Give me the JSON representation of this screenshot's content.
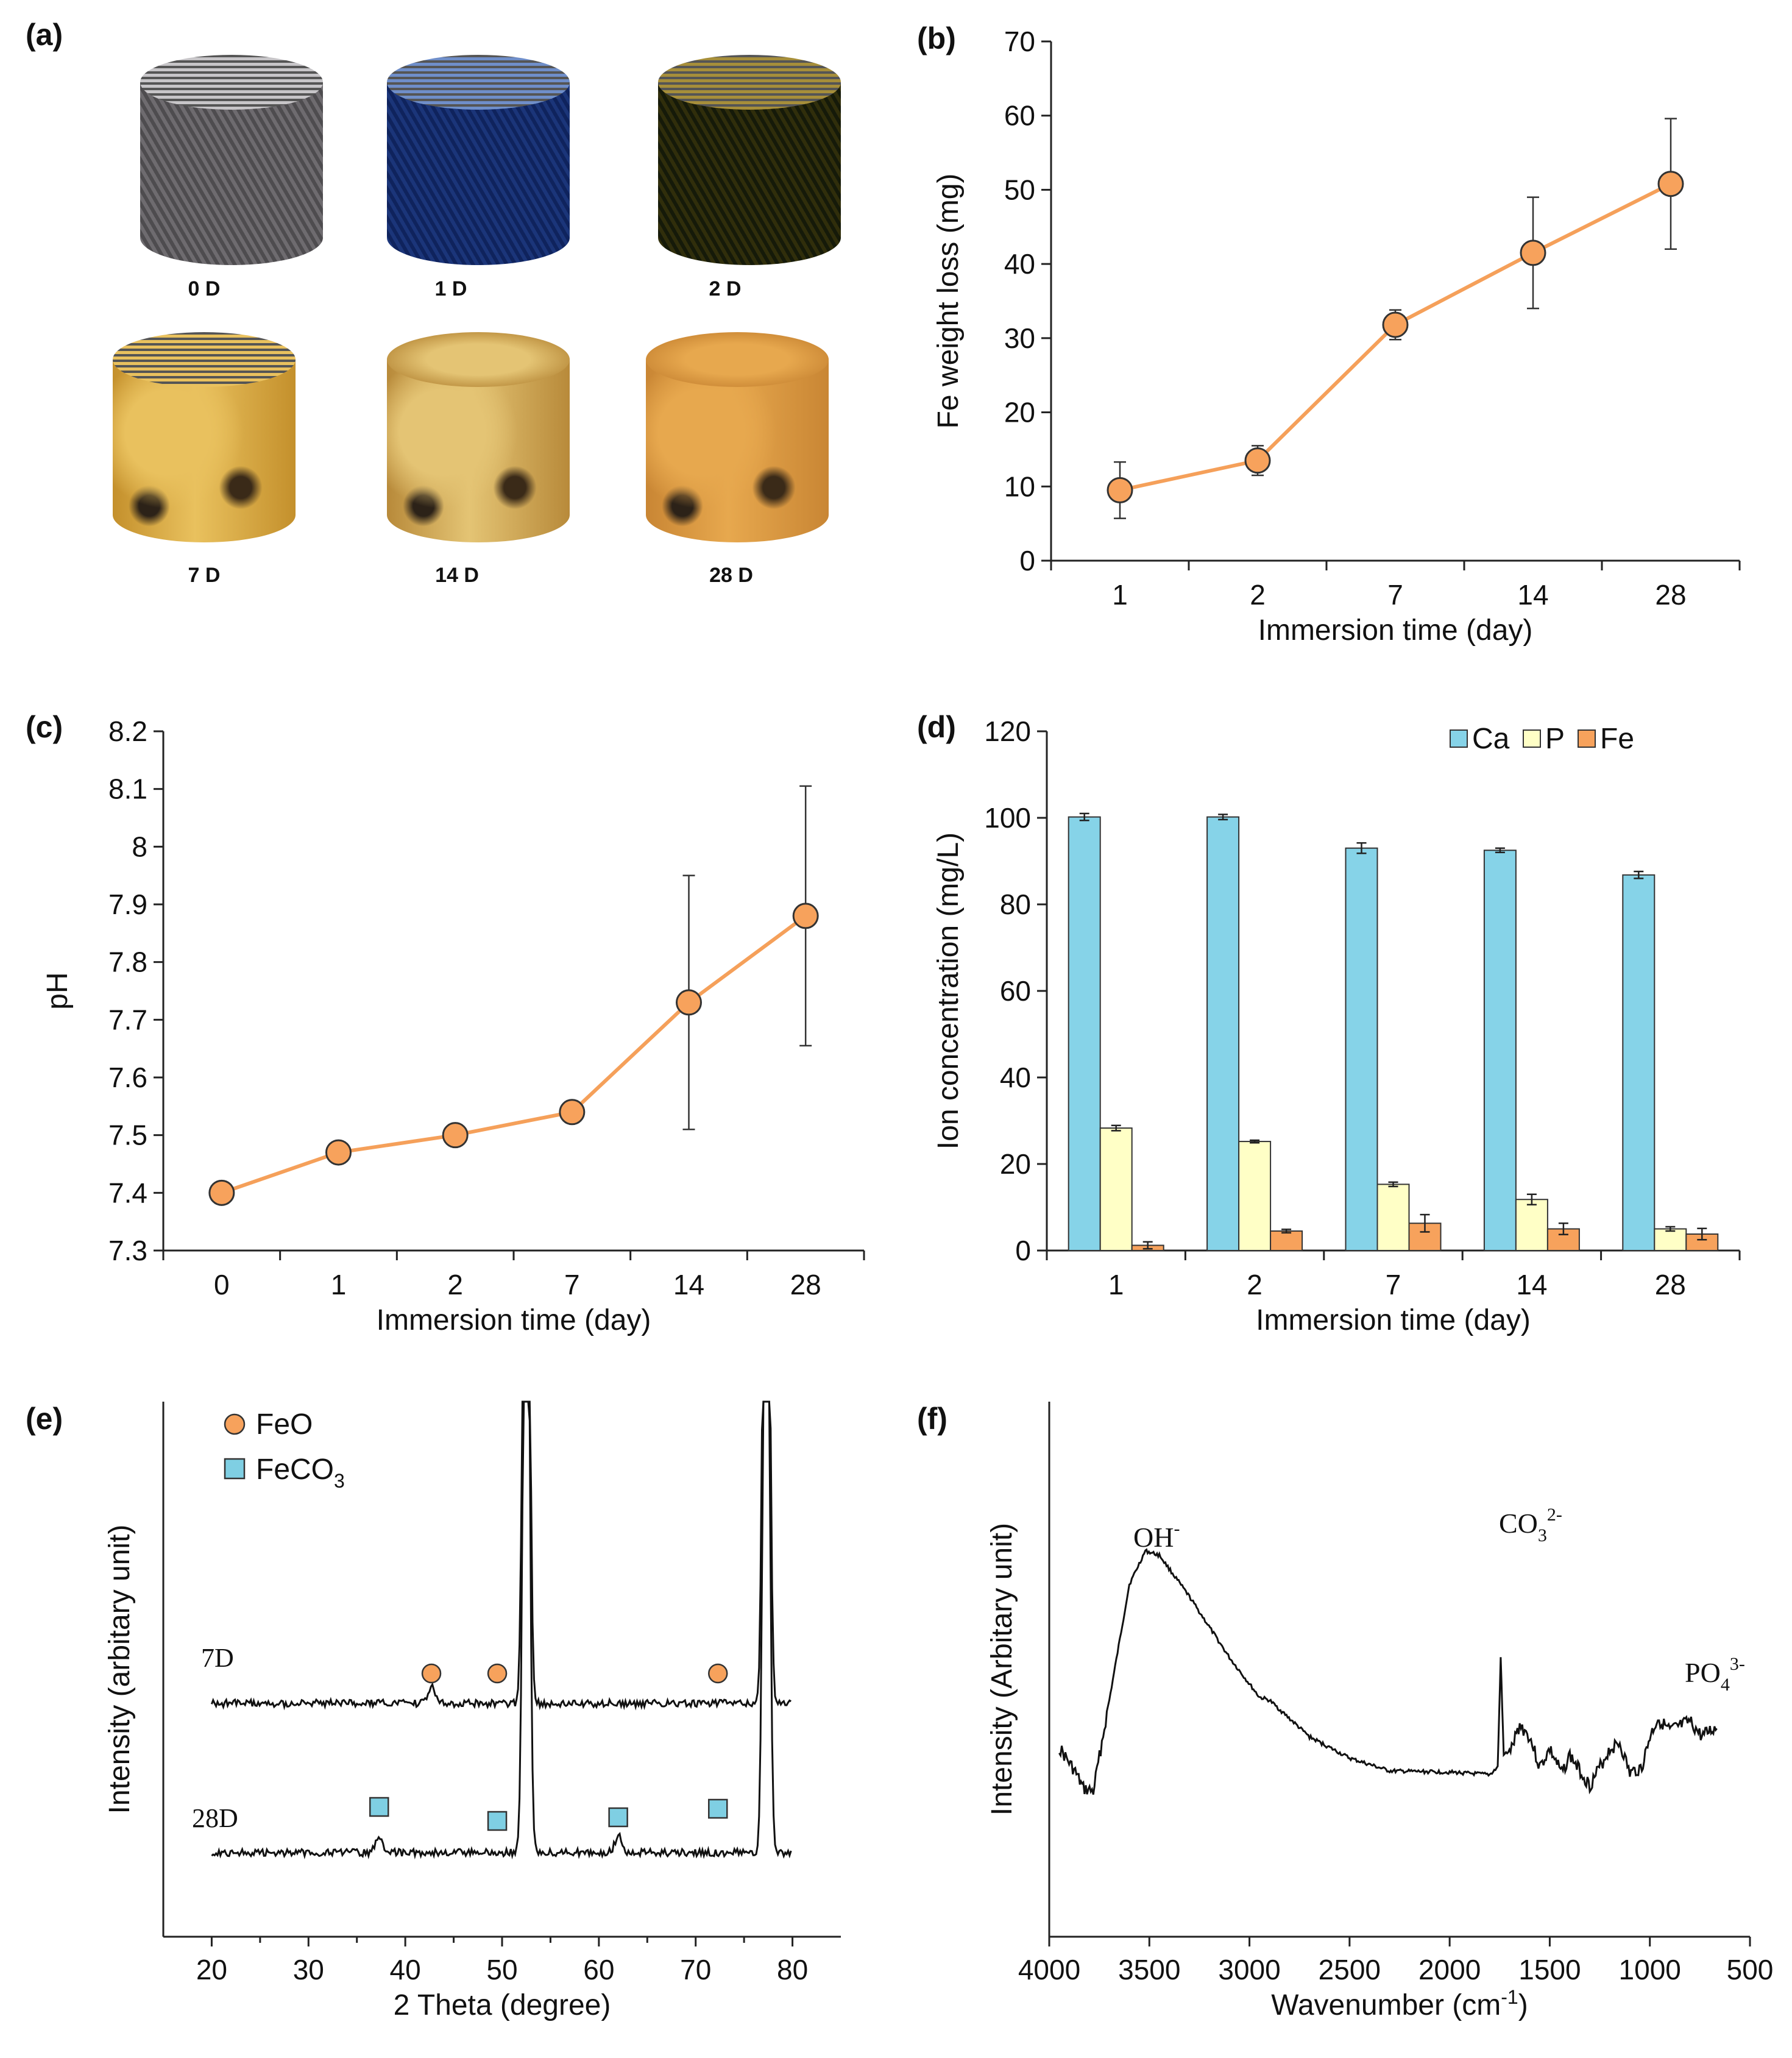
{
  "panels": {
    "a": {
      "label": "(a)",
      "samples": [
        {
          "name": "0 D",
          "color": "#8d8b8e",
          "color2": "#c7c5c8",
          "style": "mesh"
        },
        {
          "name": "1 D",
          "color": "#3d5f9a",
          "color2": "#6f8ec9",
          "style": "mesh"
        },
        {
          "name": "2 D",
          "color": "#4a5230",
          "color2": "#a68e3a",
          "style": "mesh"
        },
        {
          "name": "7 D",
          "color": "#c4902c",
          "color2": "#e9c15e",
          "style": "rust"
        },
        {
          "name": "14 D",
          "color": "#b88a3a",
          "color2": "#e4c474",
          "style": "rust"
        },
        {
          "name": "28 D",
          "color": "#c98634",
          "color2": "#e7a84e",
          "style": "rust"
        }
      ]
    },
    "e": {
      "legend": [
        {
          "symbol": "circle",
          "label": "FeO",
          "color": "#f7a25c"
        },
        {
          "symbol": "square",
          "label": "FeCO",
          "sub": "3",
          "color": "#7fcfe3"
        }
      ],
      "traces": [
        {
          "name": "7D"
        },
        {
          "name": "28D"
        }
      ]
    },
    "f": {
      "annotations": [
        {
          "base": "OH",
          "sup": "-"
        },
        {
          "base": "CO",
          "sub": "3",
          "sup": "2-"
        },
        {
          "base": "PO",
          "sub": "4",
          "sup": "3-"
        }
      ]
    }
  },
  "chart_data": [
    {
      "id": "b",
      "panel_label": "(b)",
      "type": "line",
      "categories": [
        "1",
        "2",
        "7",
        "14",
        "28"
      ],
      "values": [
        9.5,
        13.5,
        31.8,
        41.5,
        50.8
      ],
      "errors": [
        3.8,
        2.0,
        2.0,
        7.5,
        8.8
      ],
      "ylabel": "Fe weight loss (mg)",
      "xlabel": "Immersion time (day)",
      "ylim": [
        0,
        70
      ],
      "yticks": [
        "0",
        "10",
        "20",
        "30",
        "40",
        "50",
        "60",
        "70"
      ],
      "color": "#f7a25c",
      "line_color": "#f5a05a"
    },
    {
      "id": "c",
      "panel_label": "(c)",
      "type": "line",
      "categories": [
        "0",
        "1",
        "2",
        "7",
        "14",
        "28"
      ],
      "values": [
        7.4,
        7.47,
        7.5,
        7.54,
        7.73,
        7.88
      ],
      "errors": [
        0,
        0,
        0,
        0,
        0.22,
        0.225
      ],
      "ylabel": "pH",
      "xlabel": "Immersion time (day)",
      "ylim": [
        7.3,
        8.2
      ],
      "yticks": [
        "7.3",
        "7.4",
        "7.5",
        "7.6",
        "7.7",
        "7.8",
        "7.9",
        "8",
        "8.1",
        "8.2"
      ],
      "color": "#f7a25c",
      "line_color": "#f5a05a"
    },
    {
      "id": "d",
      "panel_label": "(d)",
      "type": "bar",
      "categories": [
        "1",
        "2",
        "7",
        "14",
        "28"
      ],
      "series": [
        {
          "name": "Ca",
          "values": [
            100.2,
            100.2,
            93.0,
            92.5,
            86.8
          ],
          "errors": [
            0.8,
            0.6,
            1.2,
            0.5,
            0.8
          ],
          "color": "#86d3e8"
        },
        {
          "name": "P",
          "values": [
            28.3,
            25.2,
            15.3,
            11.8,
            5.0
          ],
          "errors": [
            0.6,
            0.3,
            0.5,
            1.2,
            0.5
          ],
          "color": "#ffffc6"
        },
        {
          "name": "Fe",
          "values": [
            1.2,
            4.5,
            6.3,
            5.0,
            3.8
          ],
          "errors": [
            0.8,
            0.4,
            2.0,
            1.3,
            1.3
          ],
          "color": "#f7a25c"
        }
      ],
      "ylabel": "Ion concentration (mg/L)",
      "xlabel": "Immersion  time (day)",
      "ylim": [
        0,
        120
      ],
      "yticks": [
        "0",
        "20",
        "40",
        "60",
        "80",
        "100",
        "120"
      ]
    },
    {
      "id": "e",
      "panel_label": "(e)",
      "type": "line",
      "xlabel": "2 Theta (degree)",
      "ylabel": "Intensity (arbitary unit)",
      "xlim": [
        15,
        85
      ],
      "xticks": [
        "20",
        "30",
        "40",
        "50",
        "60",
        "70",
        "80"
      ],
      "peaks_deg": [
        52.5,
        77.3
      ],
      "FeO_markers_7D_deg": [
        42.7,
        49.5,
        72.3
      ],
      "FeCO3_markers_28D_deg": [
        37.3,
        49.5,
        62.0,
        72.3
      ]
    },
    {
      "id": "f",
      "panel_label": "(f)",
      "type": "line",
      "xlabel": "Wavenumber (cm",
      "xlabel_sup": "-1",
      "xlabel_end": ")",
      "ylabel": "Intensity (Arbitary unit)",
      "xlim": [
        4000,
        500
      ],
      "xticks": [
        "4000",
        "3500",
        "3000",
        "2500",
        "2000",
        "1500",
        "1000",
        "500"
      ],
      "band_positions_cm1": [
        3500,
        1740,
        1000
      ]
    }
  ]
}
